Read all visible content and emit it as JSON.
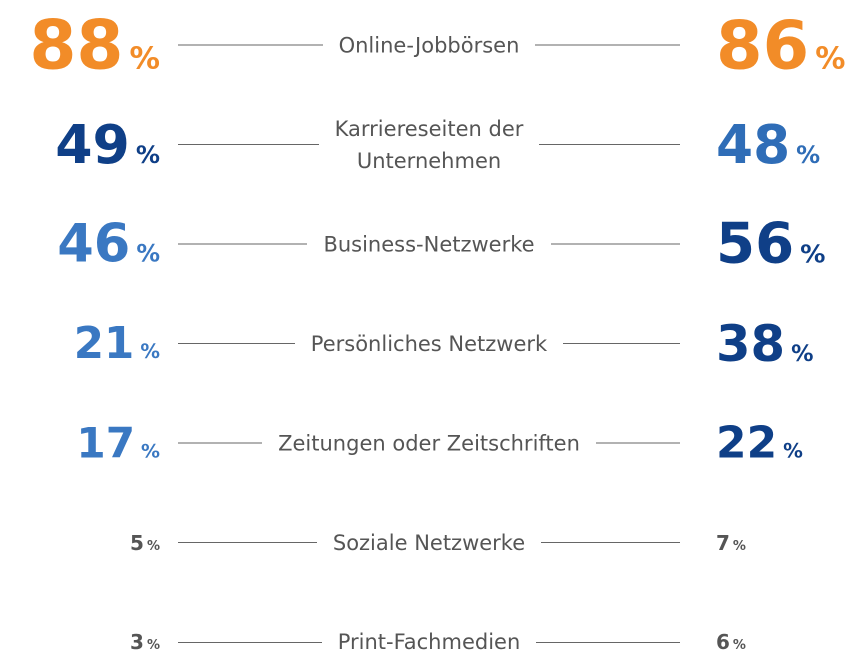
{
  "chart_data": {
    "type": "comparison",
    "unit": "%",
    "rows": [
      {
        "label": [
          "Online-Jobbörsen"
        ],
        "left": 88,
        "right": 86,
        "left_color": "#f28c28",
        "right_color": "#f28c28"
      },
      {
        "label": [
          "Karriereseiten der",
          "Unternehmen"
        ],
        "left": 49,
        "right": 48,
        "left_color": "#0f3f87",
        "right_color": "#2f6db7"
      },
      {
        "label": [
          "Business-Netzwerke"
        ],
        "left": 46,
        "right": 56,
        "left_color": "#3a78c2",
        "right_color": "#0f3f87"
      },
      {
        "label": [
          "Persönliches Netzwerk"
        ],
        "left": 21,
        "right": 38,
        "left_color": "#3a78c2",
        "right_color": "#0f3f87"
      },
      {
        "label": [
          "Zeitungen oder Zeitschriften"
        ],
        "left": 17,
        "right": 22,
        "left_color": "#3a78c2",
        "right_color": "#0f3f87"
      },
      {
        "label": [
          "Soziale Netzwerke"
        ],
        "left": 5,
        "right": 7,
        "left_color": "#555555",
        "right_color": "#555555"
      },
      {
        "label": [
          "Print-Fachmedien"
        ],
        "left": 3,
        "right": 6,
        "left_color": "#555555",
        "right_color": "#555555"
      }
    ]
  }
}
